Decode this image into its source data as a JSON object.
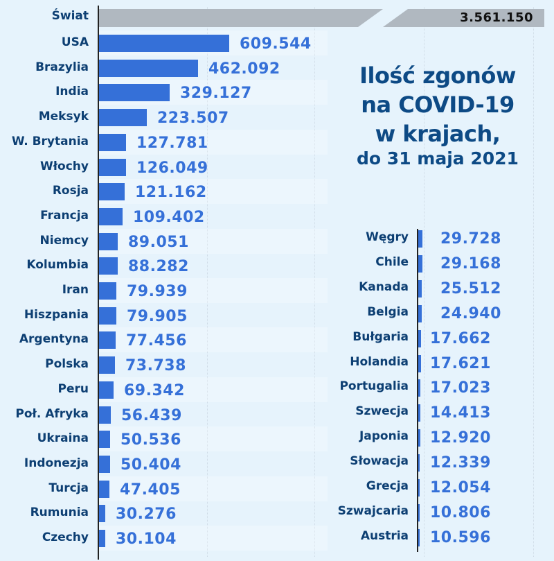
{
  "chart_data": {
    "type": "bar",
    "orientation": "horizontal",
    "title": "Ilość zgonów na COVID-19 w krajach, do 31 maja 2021",
    "title_lines": [
      "Ilość zgonów",
      "na COVID-19",
      "w krajach,",
      "do 31 maja 2021"
    ],
    "world": {
      "label": "Świat",
      "value": 3561150,
      "display": "3.561.150"
    },
    "left_panel": {
      "categories": [
        "USA",
        "Brazylia",
        "India",
        "Meksyk",
        "W. Brytania",
        "Włochy",
        "Rosja",
        "Francja",
        "Niemcy",
        "Kolumbia",
        "Iran",
        "Hiszpania",
        "Argentyna",
        "Polska",
        "Peru",
        "Poł. Afryka",
        "Ukraina",
        "Indonezja",
        "Turcja",
        "Rumunia",
        "Czechy"
      ],
      "values": [
        609544,
        462092,
        329127,
        223507,
        127781,
        126049,
        121162,
        109402,
        89051,
        88282,
        79939,
        79905,
        77456,
        73738,
        69342,
        56439,
        50536,
        50404,
        47405,
        30276,
        30104
      ],
      "display": [
        "609.544",
        "462.092",
        "329.127",
        "223.507",
        "127.781",
        "126.049",
        "121.162",
        "109.402",
        "89.051",
        "88.282",
        "79.939",
        "79.905",
        "77.456",
        "73.738",
        "69.342",
        "56.439",
        "50.536",
        "50.404",
        "47.405",
        "30.276",
        "30.104"
      ]
    },
    "right_panel": {
      "categories": [
        "Węgry",
        "Chile",
        "Kanada",
        "Belgia",
        "Bułgaria",
        "Holandia",
        "Portugalia",
        "Szwecja",
        "Japonia",
        "Słowacja",
        "Grecja",
        "Szwajcaria",
        "Austria"
      ],
      "values": [
        29728,
        29168,
        25512,
        24940,
        17662,
        17621,
        17023,
        14413,
        12920,
        12339,
        12054,
        10806,
        10596
      ],
      "display": [
        "29.728",
        "29.168",
        "25.512",
        "24.940",
        "17.662",
        "17.621",
        "17.023",
        "14.413",
        "12.920",
        "12.339",
        "12.054",
        "10.806",
        "10.596"
      ]
    },
    "xlabel": "",
    "ylabel": "",
    "grid": true,
    "colors": {
      "bar": "#3570d8",
      "world_bar": "#b0b8c0",
      "label": "#0d3f73",
      "value": "#3570d8",
      "title": "#0d4a85",
      "background": "#e6f3fc"
    }
  }
}
